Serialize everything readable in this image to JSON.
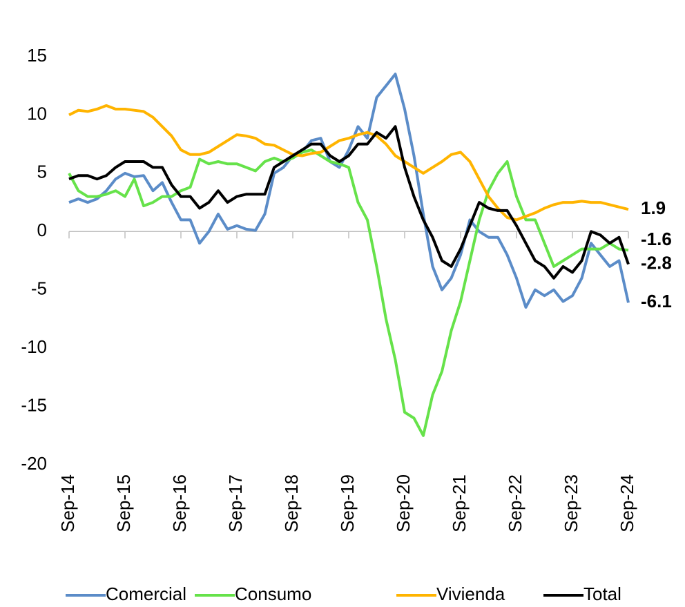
{
  "chart_data": {
    "type": "line",
    "categories": [
      "Sep-14",
      null,
      null,
      null,
      null,
      null,
      "Sep-15",
      null,
      null,
      null,
      null,
      null,
      "Sep-16",
      null,
      null,
      null,
      null,
      null,
      "Sep-17",
      null,
      null,
      null,
      null,
      null,
      "Sep-18",
      null,
      null,
      null,
      null,
      null,
      "Sep-19",
      null,
      null,
      null,
      null,
      null,
      "Sep-20",
      null,
      null,
      null,
      null,
      null,
      "Sep-21",
      null,
      null,
      null,
      null,
      null,
      "Sep-22",
      null,
      null,
      null,
      null,
      null,
      "Sep-23",
      null,
      null,
      null,
      null,
      null,
      "Sep-24"
    ],
    "series": [
      {
        "name": "Comercial",
        "color": "#5b8cc8",
        "values": [
          2.5,
          2.8,
          2.5,
          2.8,
          3.5,
          4.5,
          5.0,
          4.7,
          4.8,
          3.5,
          4.2,
          2.5,
          1.0,
          1.0,
          -1.0,
          0.0,
          1.5,
          0.2,
          0.5,
          0.2,
          0.1,
          1.5,
          5.0,
          5.5,
          6.5,
          6.8,
          7.8,
          8.0,
          6.0,
          5.5,
          7.0,
          9.0,
          8.0,
          11.5,
          12.5,
          13.5,
          10.5,
          6.5,
          1.5,
          -3.0,
          -5.0,
          -4.0,
          -2.0,
          1.0,
          0.0,
          -0.5,
          -0.5,
          -2.0,
          -4.0,
          -6.5,
          -5.0,
          -5.5,
          -5.0,
          -6.0,
          -5.5,
          -4.0,
          -1.0,
          -2.0,
          -3.0,
          -2.5,
          -6.1
        ]
      },
      {
        "name": "Consumo",
        "color": "#66e24a",
        "values": [
          5.0,
          3.5,
          3.0,
          3.0,
          3.2,
          3.5,
          3.0,
          4.5,
          2.2,
          2.5,
          3.0,
          3.0,
          3.5,
          3.8,
          6.2,
          5.8,
          6.0,
          5.8,
          5.8,
          5.5,
          5.2,
          6.0,
          6.3,
          6.0,
          6.3,
          6.8,
          7.0,
          6.5,
          6.0,
          5.8,
          5.5,
          2.5,
          1.0,
          -3.0,
          -7.5,
          -11.0,
          -15.5,
          -16.0,
          -17.5,
          -14.0,
          -12.0,
          -8.5,
          -6.0,
          -2.5,
          1.0,
          3.5,
          5.0,
          6.0,
          3.0,
          1.0,
          1.0,
          -1.0,
          -3.0,
          -2.5,
          -2.0,
          -1.5,
          -1.5,
          -1.5,
          -1.0,
          -1.5,
          -1.6
        ]
      },
      {
        "name": "Vivienda",
        "color": "#ffb400",
        "values": [
          10.0,
          10.4,
          10.3,
          10.5,
          10.8,
          10.5,
          10.5,
          10.4,
          10.3,
          9.8,
          9.0,
          8.2,
          7.0,
          6.6,
          6.6,
          6.8,
          7.3,
          7.8,
          8.3,
          8.2,
          8.0,
          7.5,
          7.4,
          7.0,
          6.6,
          6.5,
          6.7,
          6.8,
          7.3,
          7.8,
          8.0,
          8.3,
          8.5,
          8.2,
          7.5,
          6.5,
          6.0,
          5.5,
          5.0,
          5.5,
          6.0,
          6.6,
          6.8,
          6.0,
          4.5,
          3.0,
          2.0,
          1.2,
          1.0,
          1.3,
          1.6,
          2.0,
          2.3,
          2.5,
          2.5,
          2.6,
          2.5,
          2.5,
          2.3,
          2.1,
          1.9
        ]
      },
      {
        "name": "Total",
        "color": "#000000",
        "values": [
          4.5,
          4.8,
          4.8,
          4.5,
          4.8,
          5.5,
          6.0,
          6.0,
          6.0,
          5.5,
          5.5,
          4.0,
          3.0,
          3.0,
          2.0,
          2.5,
          3.5,
          2.5,
          3.0,
          3.2,
          3.2,
          3.2,
          5.5,
          6.0,
          6.5,
          7.0,
          7.5,
          7.5,
          6.5,
          6.0,
          6.5,
          7.5,
          7.5,
          8.5,
          8.0,
          9.0,
          5.5,
          3.0,
          1.0,
          -0.5,
          -2.5,
          -3.0,
          -1.5,
          0.5,
          2.5,
          2.0,
          1.8,
          1.8,
          0.5,
          -1.0,
          -2.5,
          -3.0,
          -4.0,
          -3.0,
          -3.5,
          -2.5,
          0.0,
          -0.3,
          -1.0,
          -0.5,
          -2.8
        ]
      }
    ],
    "ylim": [
      -20,
      15
    ],
    "yticks": [
      -20,
      -15,
      -10,
      -5,
      0,
      5,
      10,
      15
    ],
    "grid": false,
    "legend": "bottom"
  }
}
